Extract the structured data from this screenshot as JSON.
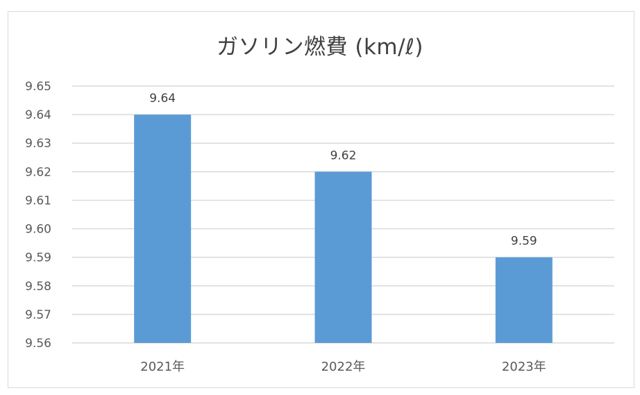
{
  "chart_data": {
    "type": "bar",
    "title": "ガソリン燃費 (km/ℓ)",
    "xlabel": "",
    "ylabel": "",
    "categories": [
      "2021年",
      "2022年",
      "2023年"
    ],
    "values": [
      9.64,
      9.62,
      9.59
    ],
    "data_labels": [
      "9.64",
      "9.62",
      "9.59"
    ],
    "ylim": [
      9.56,
      9.65
    ],
    "y_ticks": [
      9.56,
      9.57,
      9.58,
      9.59,
      9.6,
      9.61,
      9.62,
      9.63,
      9.64,
      9.65
    ],
    "y_tick_labels": [
      "9.56",
      "9.57",
      "9.58",
      "9.59",
      "9.60",
      "9.61",
      "9.62",
      "9.63",
      "9.64",
      "9.65"
    ],
    "grid": true,
    "legend": "none",
    "colors": {
      "bar": "#5b9bd5",
      "grid": "#d9d9d9",
      "text": "#595959",
      "title": "#404040"
    }
  }
}
